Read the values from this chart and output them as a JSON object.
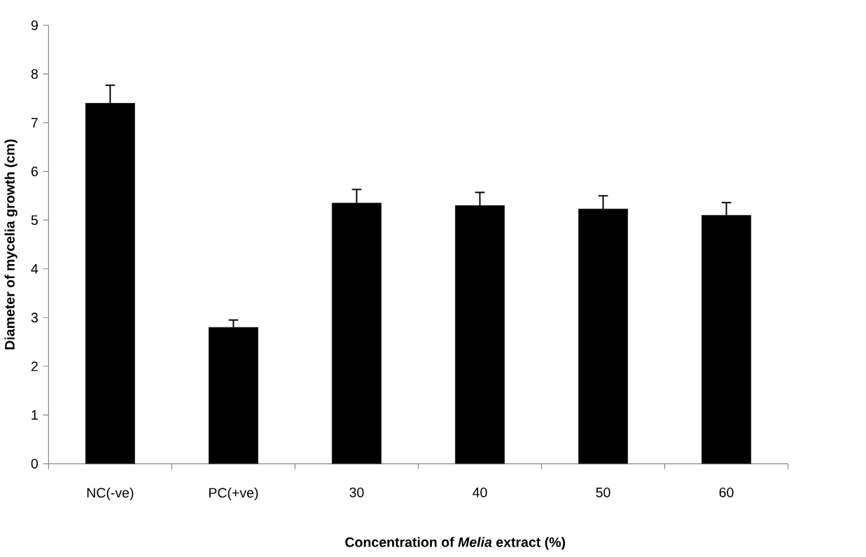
{
  "chart_data": {
    "type": "bar",
    "xlabel": "**Concentration of *Melia* extract (%)**",
    "ylabel": "Diameter of mycelia growth (cm)",
    "categories": [
      "NC(-ve)",
      "PC(+ve)",
      "30",
      "40",
      "50",
      "60"
    ],
    "values": [
      7.4,
      2.8,
      5.35,
      5.3,
      5.23,
      5.1
    ],
    "errors": [
      0.37,
      0.15,
      0.28,
      0.27,
      0.27,
      0.26
    ],
    "color": "#000000",
    "ylim": [
      0,
      9
    ],
    "yticks": [
      0,
      1,
      2,
      3,
      4,
      5,
      6,
      7,
      8,
      9
    ],
    "grid": false
  }
}
